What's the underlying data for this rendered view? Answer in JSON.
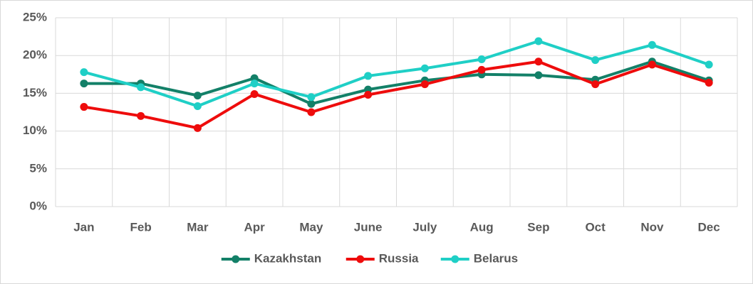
{
  "chart_data": {
    "type": "line",
    "categories": [
      "Jan",
      "Feb",
      "Mar",
      "Apr",
      "May",
      "June",
      "July",
      "Aug",
      "Sep",
      "Oct",
      "Nov",
      "Dec"
    ],
    "series": [
      {
        "name": "Kazakhstan",
        "color": "#138068",
        "values": [
          16.3,
          16.3,
          14.7,
          17.0,
          13.6,
          15.5,
          16.7,
          17.5,
          17.4,
          16.8,
          19.2,
          16.7
        ]
      },
      {
        "name": "Russia",
        "color": "#ee0c0c",
        "values": [
          13.2,
          12.0,
          10.4,
          14.9,
          12.5,
          14.8,
          16.2,
          18.1,
          19.2,
          16.2,
          18.8,
          16.4
        ]
      },
      {
        "name": "Belarus",
        "color": "#1fcfc6",
        "values": [
          17.8,
          15.8,
          13.3,
          16.3,
          14.5,
          17.3,
          18.3,
          19.5,
          21.9,
          19.4,
          21.4,
          18.8
        ]
      }
    ],
    "ylim": [
      0,
      25
    ],
    "yticks": [
      {
        "value": 0,
        "label": "0%"
      },
      {
        "value": 5,
        "label": "5%"
      },
      {
        "value": 10,
        "label": "10%"
      },
      {
        "value": 15,
        "label": "15%"
      },
      {
        "value": 20,
        "label": "20%"
      },
      {
        "value": 25,
        "label": "25%"
      }
    ],
    "grid": true,
    "legend": "bottom"
  }
}
